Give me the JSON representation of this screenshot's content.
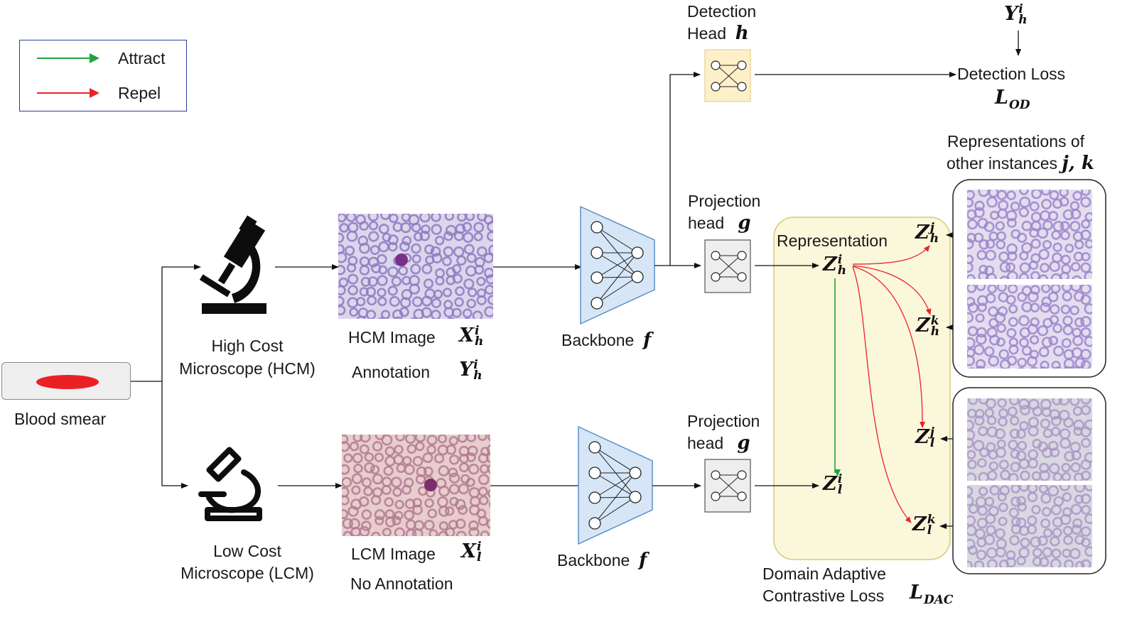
{
  "legend": {
    "attract": {
      "label": "Attract",
      "color": "#1fa33c"
    },
    "repel": {
      "label": "Repel",
      "color": "#e8232a"
    }
  },
  "blood_smear": {
    "label": "Blood smear",
    "drop_color": "#ea2025"
  },
  "hcm": {
    "label_line1": "High Cost",
    "label_line2": "Microscope (HCM)",
    "icon": "microscope-filled-icon"
  },
  "lcm": {
    "label_line1": "Low Cost",
    "label_line2": "Microscope (LCM)",
    "icon": "microscope-outline-icon"
  },
  "hcm_image": {
    "label": "HCM Image",
    "var": "X",
    "sup": "i",
    "sub": "h",
    "annotation_label": "Annotation",
    "annotation_var": "Y",
    "annotation_sup": "i",
    "annotation_sub": "h"
  },
  "lcm_image": {
    "label": "LCM Image",
    "var": "X",
    "sup": "i",
    "sub": "l",
    "annotation_label": "No Annotation"
  },
  "backbone": {
    "label": "Backbone",
    "var": "f",
    "fill": "#d6e6f7",
    "stroke": "#5b8ec7"
  },
  "projection": {
    "label_line1": "Projection",
    "label_line2": "head",
    "var": "g",
    "fill": "#eeeeee"
  },
  "detection": {
    "label_line1": "Detection",
    "label_line2": "Head",
    "var": "h",
    "fill": "#fdf0c8",
    "loss_label": "Detection Loss",
    "loss_var": "L",
    "loss_sub": "OD",
    "target_var": "Y",
    "target_sup": "i",
    "target_sub": "h"
  },
  "representation": {
    "label": "Representation",
    "panel_fill": "#fbf7da",
    "panel_stroke": "#d9c77a",
    "zh_i": {
      "var": "Z",
      "sup": "i",
      "sub": "h"
    },
    "zl_i": {
      "var": "Z",
      "sup": "i",
      "sub": "l"
    },
    "zh_j": {
      "var": "Z",
      "sup": "j",
      "sub": "h"
    },
    "zh_k": {
      "var": "Z",
      "sup": "k",
      "sub": "h"
    },
    "zl_j": {
      "var": "Z",
      "sup": "j",
      "sub": "l"
    },
    "zl_k": {
      "var": "Z",
      "sup": "k",
      "sub": "l"
    }
  },
  "other_instances": {
    "label_line1": "Representations of",
    "label_line2": "other instances",
    "vars": "j, k"
  },
  "dac_loss": {
    "label_line1": "Domain Adaptive",
    "label_line2": "Contrastive Loss",
    "var": "L",
    "sub": "DAC"
  },
  "images": {
    "hcm": {
      "background": "#dcd6ea",
      "cell": "#8d79c4",
      "special": "#7c2f88"
    },
    "lcm": {
      "background": "#e7cdcc",
      "cell": "#b27a92",
      "special": "#7c2d6b"
    },
    "other_hcm": {
      "background": "#e3ddee",
      "cell": "#9a86cc"
    },
    "other_lcm": {
      "background": "#d9d7e0",
      "cell": "#a898c8"
    }
  }
}
